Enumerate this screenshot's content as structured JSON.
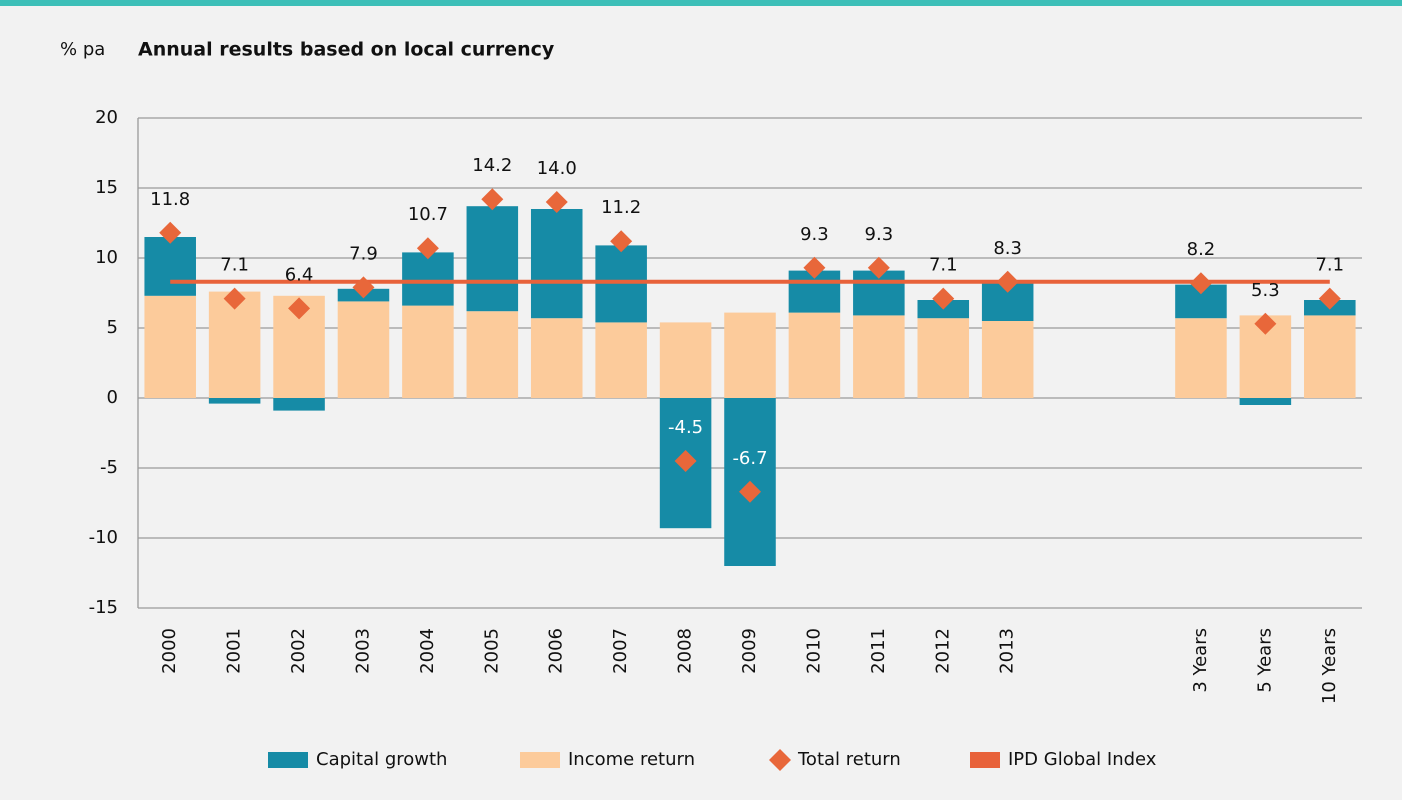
{
  "chart_data": {
    "type": "stacked_bar",
    "title": "Annual results based on local currency",
    "y_label": "% pa",
    "categories": [
      "2000",
      "2001",
      "2002",
      "2003",
      "2004",
      "2005",
      "2006",
      "2007",
      "2008",
      "2009",
      "2010",
      "2011",
      "2012",
      "2013",
      null,
      null,
      "3 Years",
      "5 Years",
      "10 Years"
    ],
    "ylim": [
      -15,
      20
    ],
    "yticks": [
      -15,
      -10,
      -5,
      0,
      5,
      10,
      15,
      20
    ],
    "grid": true,
    "legend": "bottom",
    "series": [
      {
        "name": "Capital growth",
        "color": "#168ba6",
        "kind": "bar",
        "values": [
          4.2,
          -0.4,
          -0.9,
          0.9,
          3.8,
          7.5,
          7.8,
          5.5,
          -9.3,
          -12.0,
          3.0,
          3.2,
          1.3,
          2.8,
          null,
          null,
          2.4,
          -0.5,
          1.1
        ]
      },
      {
        "name": "Income return",
        "color": "#fccb9b",
        "kind": "bar",
        "values": [
          7.3,
          7.6,
          7.3,
          6.9,
          6.6,
          6.2,
          5.7,
          5.4,
          5.4,
          6.1,
          6.1,
          5.9,
          5.7,
          5.5,
          null,
          null,
          5.7,
          5.9,
          5.9
        ]
      },
      {
        "name": "Total return",
        "color": "#e8673a",
        "kind": "diamond",
        "values": [
          11.8,
          7.1,
          6.4,
          7.9,
          10.7,
          14.2,
          14.0,
          11.2,
          -4.5,
          -6.7,
          9.3,
          9.3,
          7.1,
          8.3,
          null,
          null,
          8.2,
          5.3,
          7.1
        ],
        "value_labels": [
          "11.8",
          "7.1",
          "6.4",
          "7.9",
          "10.7",
          "14.2",
          "14.0",
          "11.2",
          "-4.5",
          "-6.7",
          "9.3",
          "9.3",
          "7.1",
          "8.3",
          null,
          null,
          "8.2",
          "5.3",
          "7.1"
        ]
      },
      {
        "name": "IPD Global Index",
        "color": "#e8623a",
        "kind": "hline",
        "value": 8.3
      }
    ]
  }
}
